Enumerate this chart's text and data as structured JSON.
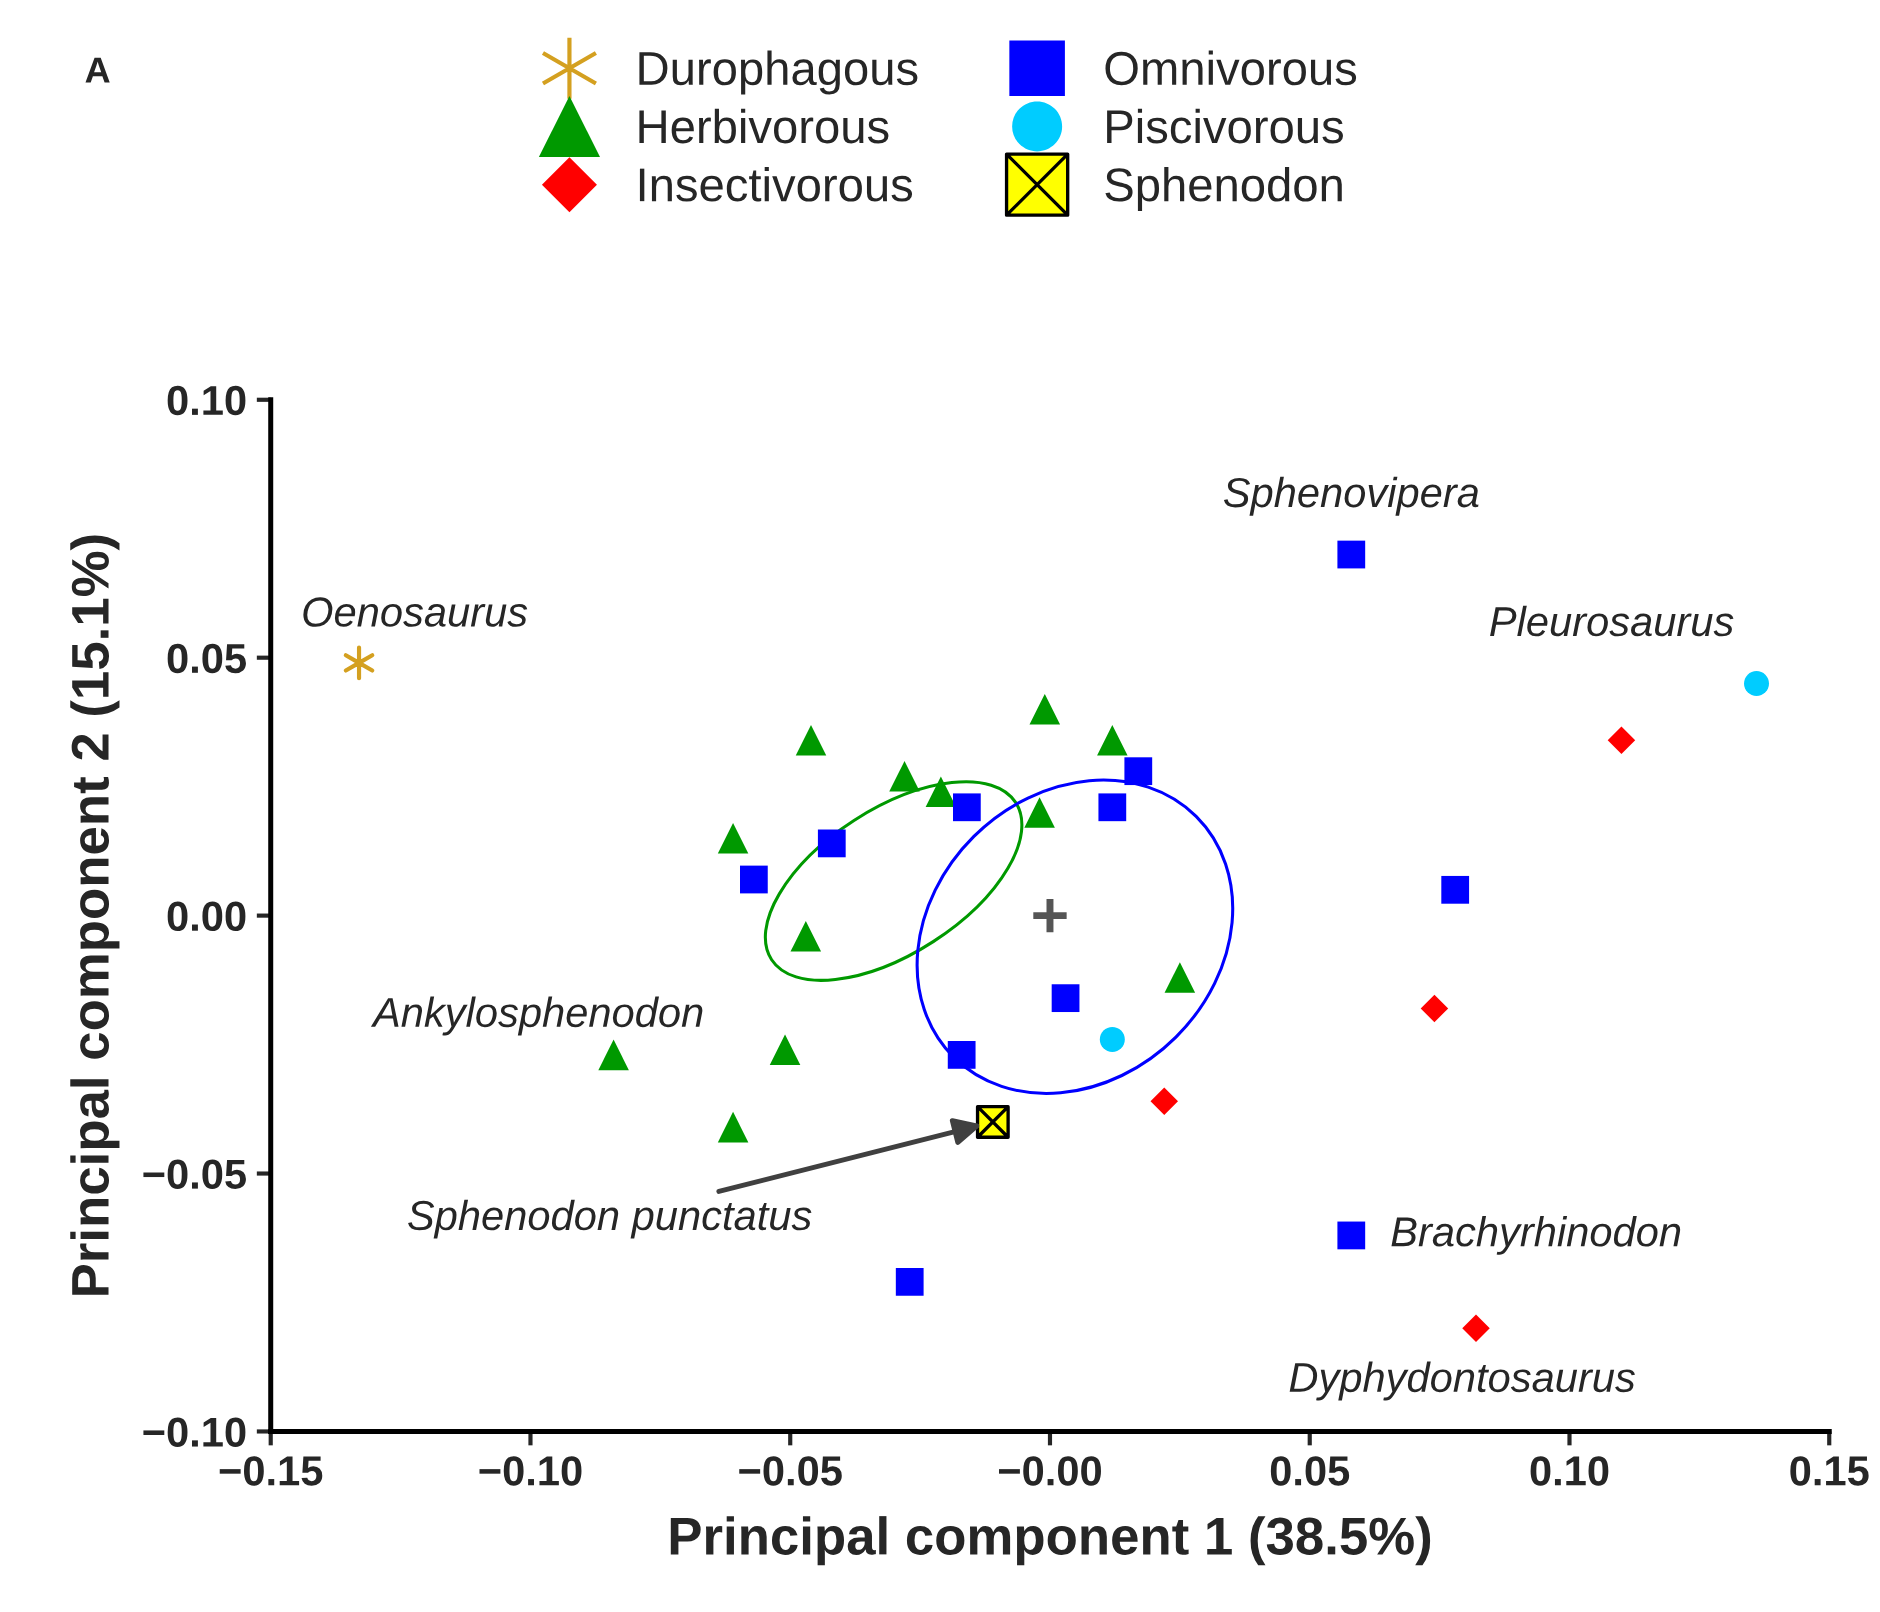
{
  "chart_data": {
    "type": "scatter",
    "xlabel": "Principal component 1 (38.5%)",
    "ylabel": "Principal component 2 (15.1%)",
    "xlim": [
      -0.15,
      0.15
    ],
    "ylim": [
      -0.1,
      0.1
    ],
    "xticks": [
      {
        "value": -0.15,
        "label": "−0.15"
      },
      {
        "value": -0.1,
        "label": "−0.10"
      },
      {
        "value": -0.05,
        "label": "−0.05"
      },
      {
        "value": 0.0,
        "label": "−0.00"
      },
      {
        "value": 0.05,
        "label": "0.05"
      },
      {
        "value": 0.1,
        "label": "0.10"
      },
      {
        "value": 0.15,
        "label": "0.15"
      }
    ],
    "yticks": [
      {
        "value": -0.1,
        "label": "−0.10"
      },
      {
        "value": -0.05,
        "label": "−0.05"
      },
      {
        "value": 0.0,
        "label": "0.00"
      },
      {
        "value": 0.05,
        "label": "0.05"
      },
      {
        "value": 0.1,
        "label": "0.10"
      }
    ],
    "grid": false,
    "legend": "top",
    "series": [
      {
        "name": "Durophagous",
        "color": "#d4a020",
        "marker": "cross",
        "x": [
          -0.133
        ],
        "values": [
          0.049
        ]
      },
      {
        "name": "Herbivorous",
        "color": "#009900",
        "marker": "triangle",
        "x": [
          -0.046,
          -0.028,
          -0.021,
          -0.001,
          -0.002,
          -0.061,
          -0.047,
          -0.084,
          -0.051,
          -0.061,
          0.012,
          0.025
        ],
        "values": [
          0.034,
          0.027,
          0.024,
          0.04,
          0.02,
          0.015,
          -0.004,
          -0.027,
          -0.026,
          -0.041,
          0.034,
          -0.012
        ]
      },
      {
        "name": "Insectivorous",
        "color": "#ff0000",
        "marker": "diamond",
        "x": [
          0.11,
          0.074,
          0.022,
          0.082
        ],
        "values": [
          0.034,
          -0.018,
          -0.036,
          -0.08
        ]
      },
      {
        "name": "Omnivorous",
        "color": "#0000ff",
        "marker": "square",
        "x": [
          -0.057,
          -0.042,
          -0.016,
          0.003,
          -0.017,
          0.017,
          0.012,
          0.058,
          0.078,
          -0.027,
          0.058
        ],
        "values": [
          0.007,
          0.014,
          0.021,
          -0.016,
          -0.027,
          0.028,
          0.021,
          0.07,
          0.005,
          -0.071,
          -0.062
        ]
      },
      {
        "name": "Piscivorous",
        "color": "#00ccff",
        "marker": "circle",
        "x": [
          0.136,
          0.012
        ],
        "values": [
          0.045,
          -0.024
        ]
      },
      {
        "name": "Sphenodon",
        "color": "#ffff00",
        "marker": "cross",
        "x": [
          -0.011
        ],
        "values": [
          -0.04
        ]
      },
      {
        "color": "#555555",
        "marker": "plus",
        "x": [
          0.0
        ],
        "values": [
          0.0
        ]
      }
    ],
    "annotations": [
      {
        "text": "Oenosaurus",
        "x": -0.133,
        "y": 0.049
      },
      {
        "text": "Sphenovipera",
        "x": 0.058,
        "y": 0.07
      },
      {
        "text": "Pleurosaurus",
        "x": 0.136,
        "y": 0.045
      },
      {
        "text": "Ankylosphenodon",
        "x": -0.084,
        "y": -0.027
      },
      {
        "text": "Brachyrhinodon",
        "x": 0.058,
        "y": -0.062
      },
      {
        "text": "Dyphydontosaurus",
        "x": 0.082,
        "y": -0.08
      },
      {
        "text": "Sphenodon punctatus",
        "x": -0.011,
        "y": -0.04
      },
      "A"
    ]
  }
}
